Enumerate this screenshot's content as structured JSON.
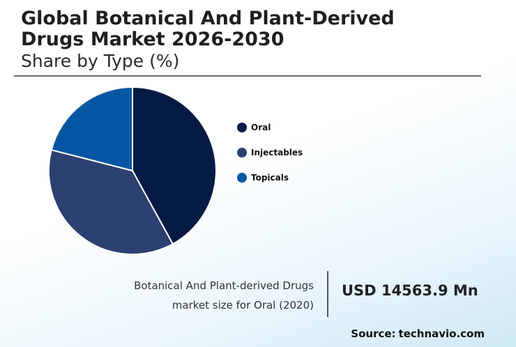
{
  "header": {
    "title_line1": "Global Botanical And Plant-Derived",
    "title_line2": "Drugs Market 2026-2030",
    "subtitle": "Share by Type (%)"
  },
  "chart_data": {
    "type": "pie",
    "title": "Global Botanical And Plant-Derived Drugs Market 2026-2030",
    "subtitle": "Share by Type (%)",
    "categories": [
      "Oral",
      "Injectables",
      "Topicals"
    ],
    "values": [
      42,
      37,
      21
    ],
    "colors": [
      "#061b43",
      "#2c4170",
      "#0556a2"
    ],
    "legend": "right"
  },
  "stat": {
    "label_line1": "Botanical And Plant-derived Drugs",
    "label_line2": "market size for Oral (2020)",
    "value": "USD 14563.9 Mn"
  },
  "source": {
    "label": "Source:",
    "value": "technavio.com"
  }
}
